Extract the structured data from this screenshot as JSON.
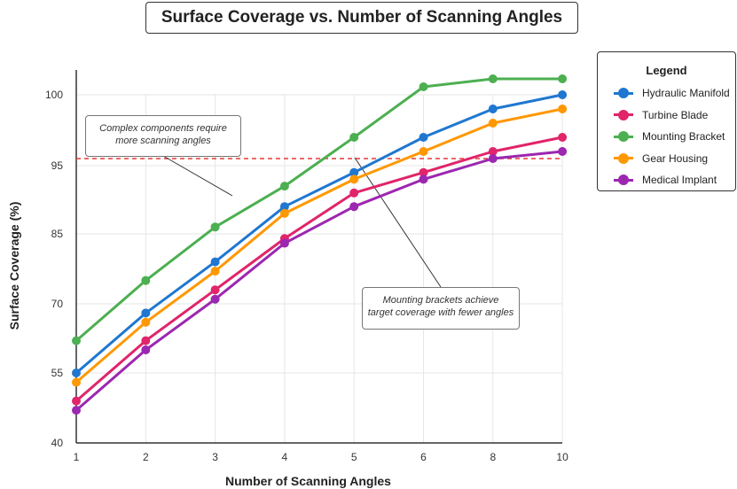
{
  "title": "Surface Coverage vs. Number of Scanning Angles",
  "legend": {
    "title": "Legend",
    "items": [
      {
        "label": "Hydraulic Manifold",
        "color": "#1f77d0"
      },
      {
        "label": "Turbine Blade",
        "color": "#e0256a"
      },
      {
        "label": "Mounting Bracket",
        "color": "#4caf50"
      },
      {
        "label": "Gear Housing",
        "color": "#ff9800"
      },
      {
        "label": "Medical Implant",
        "color": "#9c27b0"
      }
    ]
  },
  "annotations": {
    "complex": [
      "Complex components require",
      "more scanning angles"
    ],
    "brackets": [
      "Mounting brackets achieve",
      "target coverage with fewer angles"
    ]
  },
  "chart_data": {
    "type": "line",
    "title": "Surface Coverage vs. Number of Scanning Angles",
    "xlabel": "Number of Scanning Angles",
    "ylabel": "Surface Coverage (%)",
    "categories": [
      "1",
      "2",
      "3",
      "4",
      "5",
      "6",
      "8",
      "10"
    ],
    "y_tick_labels": [
      "40",
      "55",
      "70",
      "85",
      "95",
      "100"
    ],
    "grid": true,
    "legend_position": "right",
    "series": [
      {
        "name": "Hydraulic Manifold",
        "color": "#1f77d0",
        "values": [
          55,
          68,
          79,
          89,
          94,
          97,
          99,
          100
        ]
      },
      {
        "name": "Turbine Blade",
        "color": "#e0256a",
        "values": [
          49,
          62,
          73,
          84,
          91,
          94,
          96,
          97
        ]
      },
      {
        "name": "Mounting Bracket",
        "color": "#4caf50",
        "values": [
          62,
          75,
          86,
          92,
          97,
          101,
          102,
          102
        ]
      },
      {
        "name": "Gear Housing",
        "color": "#ff9800",
        "values": [
          53,
          66,
          77,
          88,
          93,
          96,
          98,
          99
        ]
      },
      {
        "name": "Medical Implant",
        "color": "#9c27b0",
        "values": [
          47,
          60,
          71,
          83,
          89,
          93,
          95.5,
          96
        ]
      }
    ],
    "reference_line": {
      "y": 95.5,
      "color": "#e53935",
      "style": "dashed"
    }
  }
}
